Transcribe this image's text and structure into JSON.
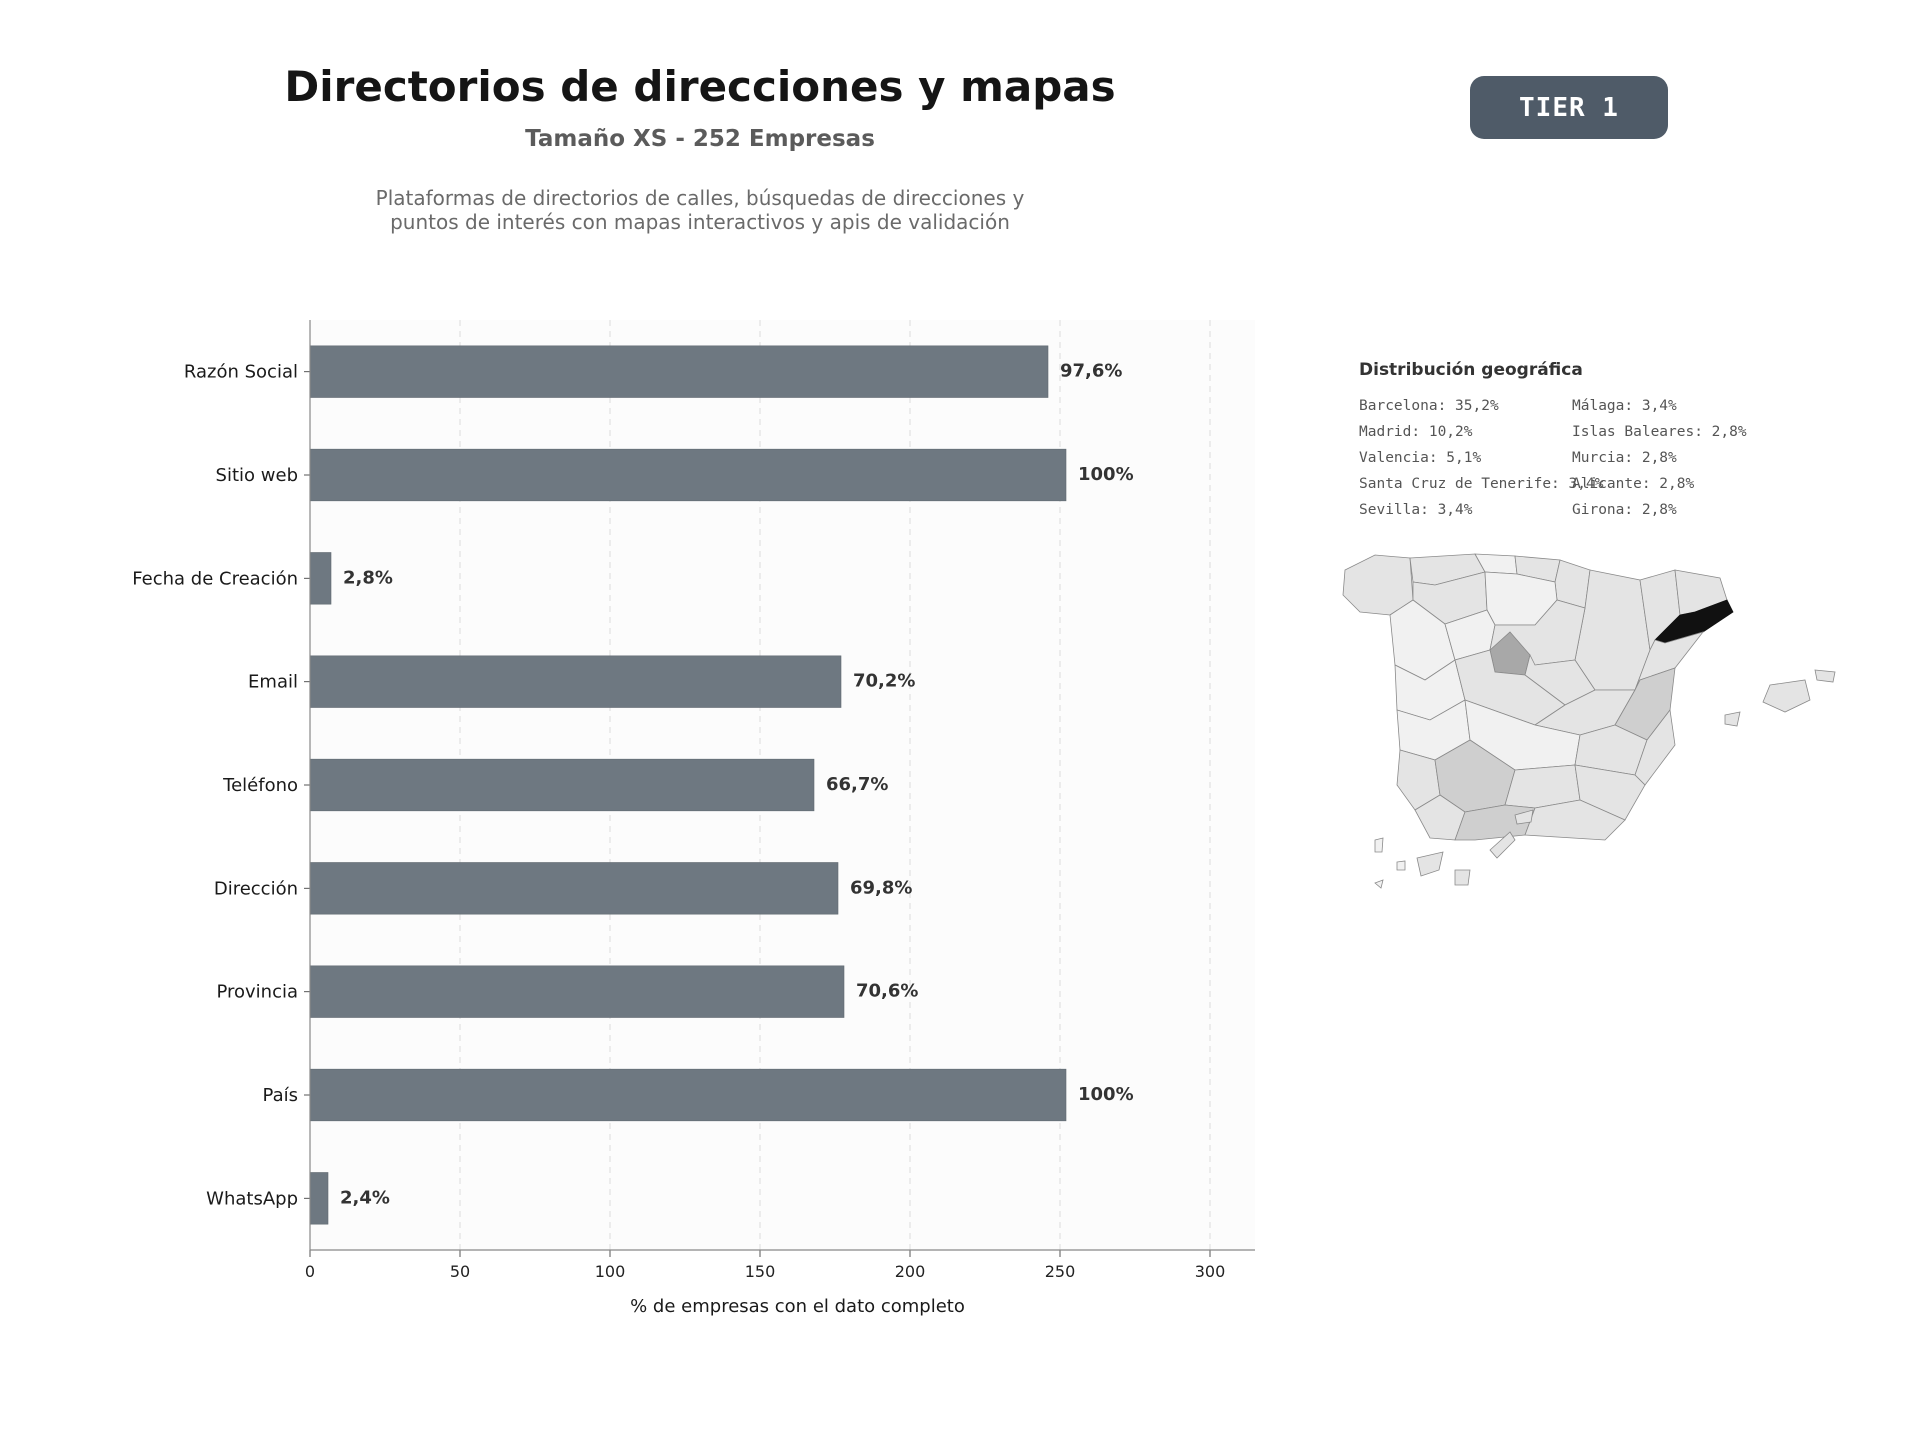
{
  "header": {
    "title": "Directorios de direcciones y mapas",
    "subtitle": "Tamaño XS - 252 Empresas",
    "description_lines": [
      "Plataformas de directorios de calles, búsquedas de direcciones y",
      "puntos de interés con mapas interactivos y apis de validación"
    ],
    "tier_badge": "TIER 1"
  },
  "chart_data": {
    "type": "bar",
    "orientation": "horizontal",
    "categories": [
      "Razón Social",
      "Sitio web",
      "Fecha de Creación",
      "Email",
      "Teléfono",
      "Dirección",
      "Provincia",
      "País",
      "WhatsApp"
    ],
    "values": [
      246,
      252,
      7,
      177,
      168,
      176,
      178,
      252,
      6
    ],
    "data_labels": [
      "97,6%",
      "100%",
      "2,8%",
      "70,2%",
      "66,7%",
      "69,8%",
      "70,6%",
      "100%",
      "2,4%"
    ],
    "xlabel": "% de empresas con el dato completo",
    "xlim": [
      0,
      315
    ],
    "xticks": [
      0,
      50,
      100,
      150,
      200,
      250,
      300
    ],
    "grid": "vertical dashed",
    "colors": {
      "bar": "#6e7881",
      "plot_bg": "#fcfcfc",
      "label": "#333333"
    }
  },
  "geo": {
    "title": "Distribución geográfica",
    "items": [
      "Barcelona: 35,2%",
      "Madrid: 10,2%",
      "Valencia: 5,1%",
      "Santa Cruz de Tenerife: 3,4%",
      "Sevilla: 3,4%",
      "Málaga: 3,4%",
      "Islas Baleares: 2,8%",
      "Murcia: 2,8%",
      "Alicante: 2,8%",
      "Girona: 2,8%"
    ],
    "map_colors": {
      "highlight": "#111111",
      "high": "#a8a8a8",
      "mid": "#cfcfcf",
      "low": "#e4e4e4",
      "lowest": "#f1f1f1",
      "border": "#8a8a8a"
    }
  }
}
